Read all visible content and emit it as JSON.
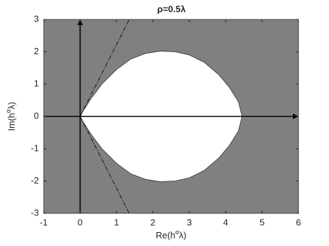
{
  "chart_data": {
    "type": "region",
    "title": "ρ=0.5λ",
    "xlabel": [
      "Re(h",
      "α",
      "λ)"
    ],
    "ylabel": [
      "Im(h",
      "α",
      "λ)"
    ],
    "xlim": [
      -1,
      6
    ],
    "ylim": [
      -3,
      3
    ],
    "xticks": [
      -1,
      0,
      1,
      2,
      3,
      4,
      5,
      6
    ],
    "yticks": [
      -3,
      -2,
      -1,
      0,
      1,
      2,
      3
    ],
    "grid": false,
    "background_color": "#808080",
    "region_color": "#ffffff",
    "boundary": {
      "x": [
        0,
        0.1,
        0.3,
        0.6,
        1.0,
        1.4,
        1.8,
        2.2,
        2.6,
        3.0,
        3.4,
        3.8,
        4.1,
        4.35,
        4.45,
        4.35,
        4.1,
        3.8,
        3.4,
        3.0,
        2.6,
        2.2,
        1.8,
        1.4,
        1.0,
        0.6,
        0.3,
        0.1,
        0
      ],
      "y": [
        0,
        0.2,
        0.55,
        1.0,
        1.45,
        1.78,
        1.95,
        2.02,
        2.0,
        1.9,
        1.68,
        1.3,
        0.9,
        0.45,
        0,
        -0.45,
        -0.9,
        -1.3,
        -1.68,
        -1.9,
        -2.0,
        -2.02,
        -1.95,
        -1.78,
        -1.45,
        -1.0,
        -0.55,
        -0.2,
        0
      ]
    },
    "asymptotes": [
      {
        "x": [
          0,
          1.35
        ],
        "y": [
          0,
          3
        ]
      },
      {
        "x": [
          0,
          1.35
        ],
        "y": [
          0,
          -3
        ]
      }
    ]
  }
}
